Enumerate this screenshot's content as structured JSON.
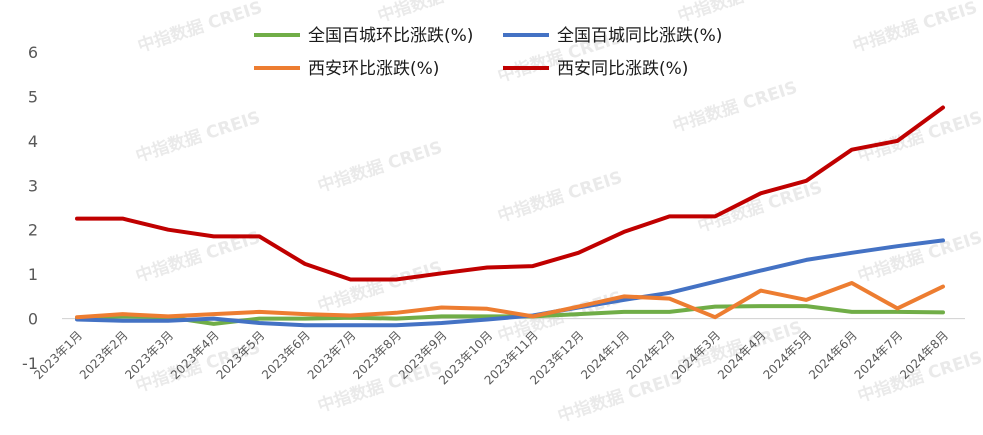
{
  "watermark": "中指数据 CREIS",
  "chart_data": {
    "type": "line",
    "title": "",
    "xlabel": "",
    "ylabel": "",
    "ylim": [
      -1,
      6
    ],
    "yticks": [
      -1,
      0,
      1,
      2,
      3,
      4,
      5,
      6
    ],
    "grid": false,
    "legend_position": "top",
    "categories": [
      "2023年1月",
      "2023年2月",
      "2023年3月",
      "2023年4月",
      "2023年5月",
      "2023年6月",
      "2023年7月",
      "2023年8月",
      "2023年9月",
      "2023年10月",
      "2023年11月",
      "2023年12月",
      "2024年1月",
      "2024年2月",
      "2024年3月",
      "2024年4月",
      "2024年5月",
      "2024年6月",
      "2024年7月",
      "2024年8月"
    ],
    "series": [
      {
        "name": "全国百城环比涨跌(%)",
        "color": "#70ad47",
        "values": [
          0.02,
          0.05,
          0.03,
          -0.12,
          0.0,
          0.0,
          0.02,
          0.0,
          0.05,
          0.05,
          0.05,
          0.1,
          0.15,
          0.15,
          0.27,
          0.28,
          0.28,
          0.15,
          0.15,
          0.14
        ]
      },
      {
        "name": "全国百城同比涨跌(%)",
        "color": "#4472c4",
        "values": [
          -0.02,
          -0.05,
          -0.05,
          0.0,
          -0.1,
          -0.15,
          -0.15,
          -0.15,
          -0.1,
          -0.02,
          0.07,
          0.25,
          0.42,
          0.58,
          0.83,
          1.08,
          1.32,
          1.48,
          1.63,
          1.76
        ]
      },
      {
        "name": "西安环比涨跌(%)",
        "color": "#ed7d31",
        "values": [
          0.03,
          0.1,
          0.05,
          0.1,
          0.15,
          0.1,
          0.07,
          0.13,
          0.25,
          0.22,
          0.05,
          0.27,
          0.5,
          0.45,
          0.03,
          0.63,
          0.42,
          0.8,
          0.23,
          0.72
        ]
      },
      {
        "name": "西安同比涨跌(%)",
        "color": "#c00000",
        "values": [
          2.25,
          2.25,
          2.0,
          1.85,
          1.85,
          1.23,
          0.88,
          0.88,
          1.02,
          1.15,
          1.18,
          1.48,
          1.95,
          2.3,
          2.3,
          2.82,
          3.1,
          3.8,
          4.0,
          4.75
        ]
      }
    ]
  }
}
